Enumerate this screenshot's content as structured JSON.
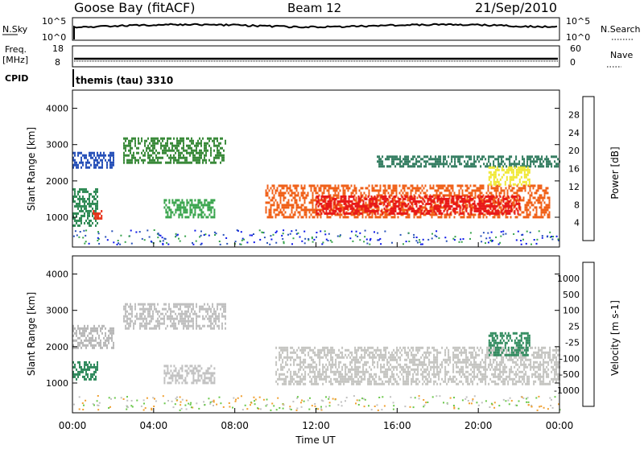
{
  "header": {
    "site": "Goose Bay (fitACF)",
    "beam": "Beam 12",
    "date": "21/Sep/2010"
  },
  "top_panels": {
    "nsky_label": "N.Sky",
    "nsky_ticks": [
      "10^5",
      "10^0"
    ],
    "nsearch_label": "N.Search",
    "nsearch_ticks": [
      "10^5",
      "10^0"
    ],
    "freq_label": "Freq.",
    "freq_unit": "[MHz]",
    "freq_ticks": [
      "18",
      "8"
    ],
    "nave_label": "Nave",
    "nave_ticks": [
      "60",
      "0"
    ],
    "cpid_label": "CPID",
    "cpid_value": "themis (tau) 3310"
  },
  "chart_data": [
    {
      "type": "heatmap",
      "panel": "power",
      "ylabel": "Slant Range [km]",
      "yticks": [
        1000,
        2000,
        3000,
        4000
      ],
      "ylim": [
        180,
        4500
      ],
      "xlim_hours": [
        0,
        24
      ],
      "colorbar": {
        "label": "Power [dB]",
        "ticks": [
          "4",
          "8",
          "12",
          "16",
          "20",
          "24",
          "28"
        ],
        "colors": [
          "#0b16e8",
          "#2650b8",
          "#2f7a5d",
          "#36a34a",
          "#8ccf3c",
          "#f0e830",
          "#f4a020",
          "#f06018",
          "#e81818",
          "#d00000"
        ]
      },
      "echo_regions": [
        {
          "t": [
            0.0,
            1.2
          ],
          "range": [
            800,
            1800
          ],
          "color": "#2f8a55"
        },
        {
          "t": [
            1.0,
            1.4
          ],
          "range": [
            1000,
            1200
          ],
          "color": "#e83018"
        },
        {
          "t": [
            0.0,
            2.0
          ],
          "range": [
            2400,
            2800
          ],
          "color": "#2650b8"
        },
        {
          "t": [
            2.5,
            7.5
          ],
          "range": [
            2500,
            3200
          ],
          "color": "#3a8a3a"
        },
        {
          "t": [
            4.5,
            7.0
          ],
          "range": [
            1000,
            1500
          ],
          "color": "#36a34a"
        },
        {
          "t": [
            9.5,
            23.5
          ],
          "range": [
            1000,
            1900
          ],
          "color": "#f06018"
        },
        {
          "t": [
            12.0,
            22.0
          ],
          "range": [
            1100,
            1600
          ],
          "color": "#e81818"
        },
        {
          "t": [
            15.0,
            24.0
          ],
          "range": [
            2400,
            2700
          ],
          "color": "#2f7a5d"
        },
        {
          "t": [
            20.5,
            22.5
          ],
          "range": [
            1900,
            2400
          ],
          "color": "#f0e830"
        }
      ]
    },
    {
      "type": "heatmap",
      "panel": "velocity",
      "ylabel": "Slant Range [km]",
      "yticks": [
        1000,
        2000,
        3000,
        4000
      ],
      "ylim": [
        180,
        4500
      ],
      "xlim_hours": [
        0,
        24
      ],
      "xlabel": "Time UT",
      "xticks": [
        "00:00",
        "04:00",
        "08:00",
        "12:00",
        "16:00",
        "20:00",
        "00:00"
      ],
      "colorbar": {
        "label": "Velocity [m s-1]",
        "ticks": [
          "1000",
          "500",
          "100",
          "25",
          "-25",
          "-100",
          "-500",
          "-1000"
        ],
        "colors": [
          "#1030c8",
          "#206a8a",
          "#2f8a5d",
          "#6ac84a",
          "#c0c0c0",
          "#c0c0c0",
          "#f0a030",
          "#f08020",
          "#f04010",
          "#e81010"
        ]
      },
      "echo_regions": [
        {
          "t": [
            0.0,
            1.2
          ],
          "range": [
            1100,
            1600
          ],
          "color": "#2f8a5d"
        },
        {
          "t": [
            0.0,
            2.0
          ],
          "range": [
            2000,
            2600
          ],
          "color": "#b8b8b8"
        },
        {
          "t": [
            2.5,
            7.5
          ],
          "range": [
            2500,
            3200
          ],
          "color": "#c0c0c0"
        },
        {
          "t": [
            4.5,
            7.0
          ],
          "range": [
            1000,
            1500
          ],
          "color": "#c0c0c0"
        },
        {
          "t": [
            10.0,
            24.0
          ],
          "range": [
            1000,
            2000
          ],
          "color": "#c4c4c0"
        },
        {
          "t": [
            20.5,
            22.5
          ],
          "range": [
            1800,
            2400
          ],
          "color": "#2f8a5d"
        }
      ]
    }
  ]
}
